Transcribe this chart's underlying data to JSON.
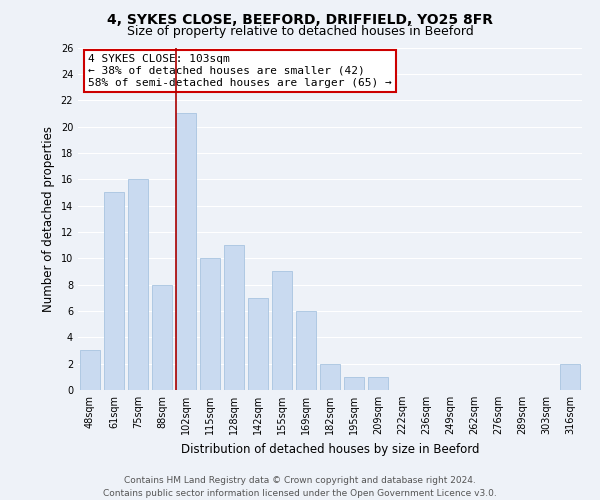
{
  "title": "4, SYKES CLOSE, BEEFORD, DRIFFIELD, YO25 8FR",
  "subtitle": "Size of property relative to detached houses in Beeford",
  "xlabel": "Distribution of detached houses by size in Beeford",
  "ylabel": "Number of detached properties",
  "categories": [
    "48sqm",
    "61sqm",
    "75sqm",
    "88sqm",
    "102sqm",
    "115sqm",
    "128sqm",
    "142sqm",
    "155sqm",
    "169sqm",
    "182sqm",
    "195sqm",
    "209sqm",
    "222sqm",
    "236sqm",
    "249sqm",
    "262sqm",
    "276sqm",
    "289sqm",
    "303sqm",
    "316sqm"
  ],
  "values": [
    3,
    15,
    16,
    8,
    21,
    10,
    11,
    7,
    9,
    6,
    2,
    1,
    1,
    0,
    0,
    0,
    0,
    0,
    0,
    0,
    2
  ],
  "bar_color": "#c9daf0",
  "bar_edge_color": "#a8c4e0",
  "vline_x_index": 4,
  "vline_color": "#aa0000",
  "ylim": [
    0,
    26
  ],
  "yticks": [
    0,
    2,
    4,
    6,
    8,
    10,
    12,
    14,
    16,
    18,
    20,
    22,
    24,
    26
  ],
  "annotation_title": "4 SYKES CLOSE: 103sqm",
  "annotation_line1": "← 38% of detached houses are smaller (42)",
  "annotation_line2": "58% of semi-detached houses are larger (65) →",
  "annotation_box_color": "#ffffff",
  "annotation_box_edge_color": "#cc0000",
  "footer_line1": "Contains HM Land Registry data © Crown copyright and database right 2024.",
  "footer_line2": "Contains public sector information licensed under the Open Government Licence v3.0.",
  "background_color": "#eef2f8",
  "grid_color": "#ffffff",
  "title_fontsize": 10,
  "subtitle_fontsize": 9,
  "axis_label_fontsize": 8.5,
  "tick_fontsize": 7,
  "annotation_fontsize": 8,
  "footer_fontsize": 6.5
}
